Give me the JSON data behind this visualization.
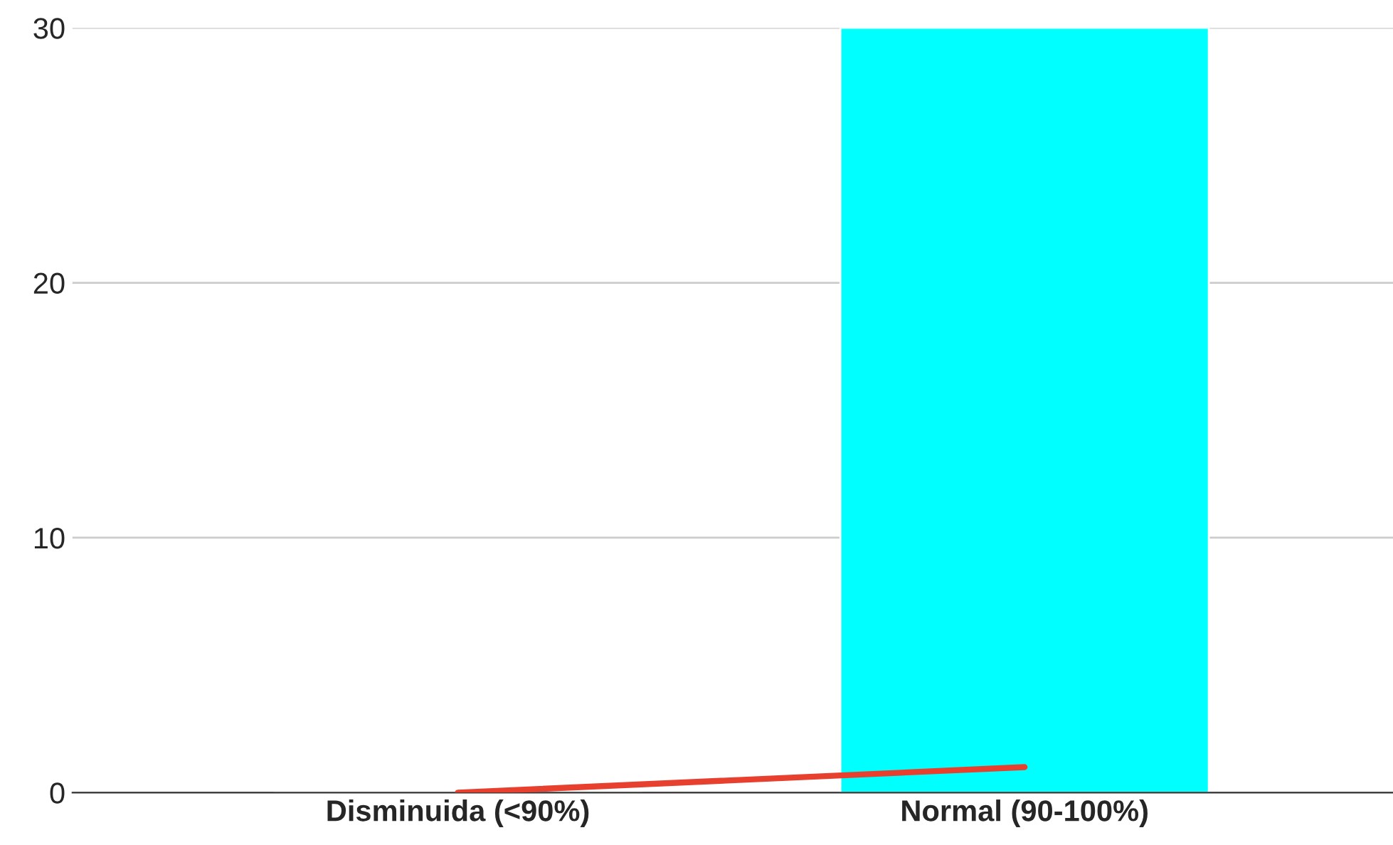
{
  "chart_data": {
    "type": "bar",
    "categories": [
      "Disminuida (<90%)",
      "Normal (90-100%)"
    ],
    "series": [
      {
        "color": "#00ffff",
        "values": [
          0,
          30
        ]
      },
      {
        "type": "line",
        "color": "#e8402f",
        "values": [
          0,
          1
        ]
      }
    ],
    "ylim": [
      0,
      30
    ],
    "yticks": [
      0,
      10,
      20,
      30
    ],
    "grid": "y",
    "legend": false
  }
}
